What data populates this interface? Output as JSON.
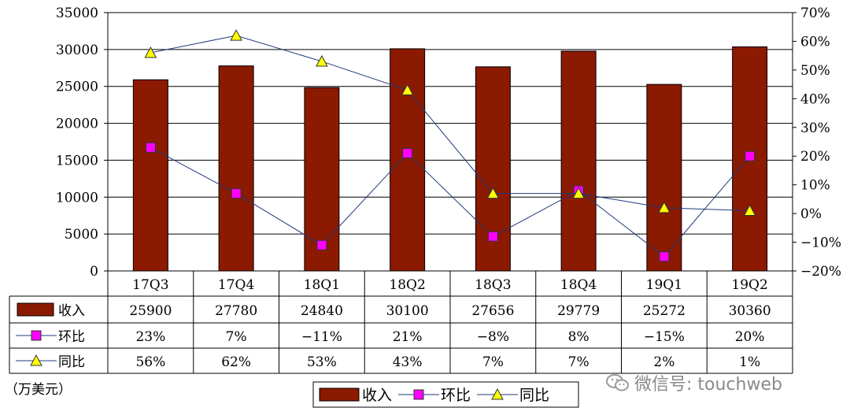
{
  "chart_data": {
    "type": "bar",
    "categories": [
      "17Q3",
      "17Q4",
      "18Q1",
      "18Q2",
      "18Q3",
      "18Q4",
      "19Q1",
      "19Q2"
    ],
    "series": [
      {
        "name": "收入",
        "kind": "bar",
        "axis": "left",
        "color": "#8B1A00",
        "values": [
          25900,
          27780,
          24840,
          30100,
          27656,
          29779,
          25272,
          30360
        ],
        "labels": [
          "25900",
          "27780",
          "24840",
          "30100",
          "27656",
          "29779",
          "25272",
          "30360"
        ]
      },
      {
        "name": "环比",
        "kind": "line",
        "axis": "right",
        "marker": "square",
        "color": "#FF00FF",
        "values": [
          23,
          7,
          -11,
          21,
          -8,
          8,
          -15,
          20
        ],
        "labels": [
          "23%",
          "7%",
          "−11%",
          "21%",
          "−8%",
          "8%",
          "−15%",
          "20%"
        ]
      },
      {
        "name": "同比",
        "kind": "line",
        "axis": "right",
        "marker": "triangle",
        "color": "#FFFF00",
        "values": [
          56,
          62,
          53,
          43,
          7,
          7,
          2,
          1
        ],
        "labels": [
          "56%",
          "62%",
          "53%",
          "43%",
          "7%",
          "7%",
          "2%",
          "1%"
        ]
      }
    ],
    "ylim_left": [
      0,
      35000
    ],
    "ylim_right": [
      -20,
      70
    ],
    "left_ticks": [
      "35000",
      "30000",
      "25000",
      "20000",
      "15000",
      "10000",
      "5000",
      "0"
    ],
    "right_ticks": [
      "70%",
      "60%",
      "50%",
      "40%",
      "30%",
      "20%",
      "10%",
      "0%",
      "−10%",
      "−20%"
    ],
    "unit_note": "（万美元）",
    "legend": {
      "position": "bottom",
      "items": [
        "收入",
        "环比",
        "同比"
      ]
    },
    "grid": true
  },
  "watermark": {
    "text": "微信号: touchweb",
    "icon": "wechat-icon"
  }
}
